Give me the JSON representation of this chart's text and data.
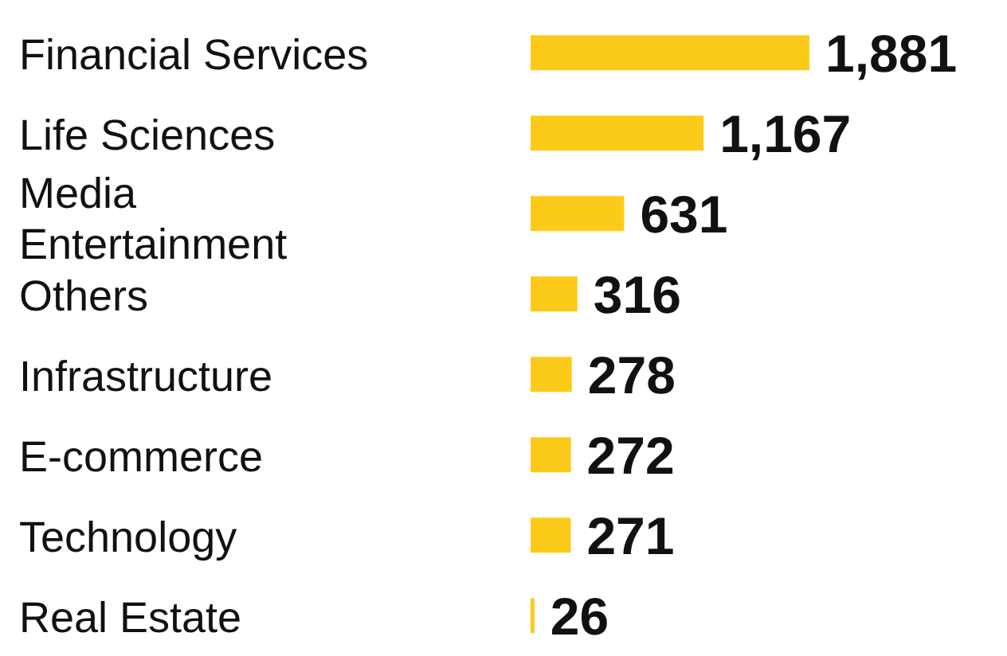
{
  "chart_data": {
    "type": "bar",
    "orientation": "horizontal",
    "categories": [
      "Financial Services",
      "Life Sciences",
      "Media Entertainment",
      "Others",
      "Infrastructure",
      "E-commerce",
      "Technology",
      "Real Estate"
    ],
    "values": [
      1881,
      1167,
      631,
      316,
      278,
      272,
      271,
      26
    ],
    "value_labels": [
      "1,881",
      "1,167",
      "631",
      "316",
      "278",
      "272",
      "271",
      "26"
    ],
    "color": "#fccb1a"
  }
}
